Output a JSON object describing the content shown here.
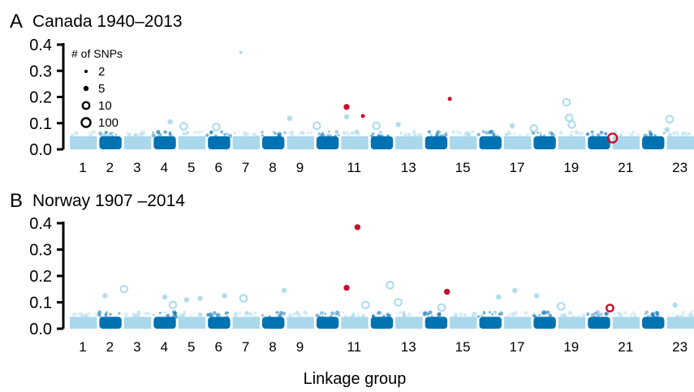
{
  "figure": {
    "xlabel": "Linkage group",
    "palette": {
      "light": "#a9d8ec",
      "dark": "#0072b2",
      "outlier": "#c8102e",
      "axis": "#000000"
    }
  },
  "legend": {
    "title": "# of SNPs",
    "entries": [
      {
        "label": "2",
        "n": 2
      },
      {
        "label": "5",
        "n": 5
      },
      {
        "label": "10",
        "n": 10
      },
      {
        "label": "100",
        "n": 100
      }
    ]
  },
  "chart_data": [
    {
      "type": "scatter",
      "panel_letter": "A",
      "title": "Canada 1940–2013",
      "xlabel": "Linkage group",
      "ylabel": "",
      "ylim": [
        0,
        0.4
      ],
      "yticks": [
        "0.0",
        "0.1",
        "0.2",
        "0.3",
        "0.4"
      ],
      "linkage_groups": 23,
      "xticks": [
        "1",
        "2",
        "3",
        "4",
        "5",
        "6",
        "7",
        "8",
        "9",
        "11",
        "13",
        "15",
        "17",
        "19",
        "21",
        "23"
      ],
      "background_max": 0.05,
      "outliers": [
        {
          "lg": 10.7,
          "y": 0.162,
          "snps": 5
        },
        {
          "lg": 11.3,
          "y": 0.127,
          "snps": 2
        },
        {
          "lg": 14.5,
          "y": 0.193,
          "snps": 2
        },
        {
          "lg": 20.5,
          "y": 0.043,
          "snps": 100
        }
      ],
      "highlights": [
        {
          "lg": 6.8,
          "y": 0.37,
          "snps": 2
        },
        {
          "lg": 4.2,
          "y": 0.105,
          "snps": 5
        },
        {
          "lg": 4.7,
          "y": 0.088,
          "snps": 10
        },
        {
          "lg": 5.9,
          "y": 0.085,
          "snps": 10
        },
        {
          "lg": 8.6,
          "y": 0.118,
          "snps": 5
        },
        {
          "lg": 9.6,
          "y": 0.09,
          "snps": 10
        },
        {
          "lg": 10.7,
          "y": 0.125,
          "snps": 5
        },
        {
          "lg": 11.8,
          "y": 0.09,
          "snps": 10
        },
        {
          "lg": 12.6,
          "y": 0.095,
          "snps": 5
        },
        {
          "lg": 16.8,
          "y": 0.09,
          "snps": 5
        },
        {
          "lg": 17.6,
          "y": 0.08,
          "snps": 10
        },
        {
          "lg": 18.8,
          "y": 0.18,
          "snps": 10
        },
        {
          "lg": 18.9,
          "y": 0.12,
          "snps": 10
        },
        {
          "lg": 19.0,
          "y": 0.095,
          "snps": 10
        },
        {
          "lg": 22.6,
          "y": 0.115,
          "snps": 10
        },
        {
          "lg": 22.5,
          "y": 0.075,
          "snps": 5
        }
      ]
    },
    {
      "type": "scatter",
      "panel_letter": "B",
      "title": "Norway 1907 –2014",
      "xlabel": "Linkage group",
      "ylabel": "",
      "ylim": [
        0,
        0.4
      ],
      "yticks": [
        "0.0",
        "0.1",
        "0.2",
        "0.3",
        "0.4"
      ],
      "linkage_groups": 23,
      "xticks": [
        "1",
        "2",
        "3",
        "4",
        "5",
        "6",
        "7",
        "8",
        "9",
        "11",
        "13",
        "15",
        "17",
        "19",
        "21",
        "23"
      ],
      "background_max": 0.045,
      "outliers": [
        {
          "lg": 11.1,
          "y": 0.385,
          "snps": 5
        },
        {
          "lg": 10.7,
          "y": 0.155,
          "snps": 5
        },
        {
          "lg": 14.4,
          "y": 0.14,
          "snps": 5
        },
        {
          "lg": 20.4,
          "y": 0.078,
          "snps": 10
        }
      ],
      "highlights": [
        {
          "lg": 1.8,
          "y": 0.125,
          "snps": 5
        },
        {
          "lg": 2.5,
          "y": 0.15,
          "snps": 10
        },
        {
          "lg": 4.0,
          "y": 0.12,
          "snps": 5
        },
        {
          "lg": 4.3,
          "y": 0.09,
          "snps": 10
        },
        {
          "lg": 4.8,
          "y": 0.11,
          "snps": 5
        },
        {
          "lg": 5.3,
          "y": 0.115,
          "snps": 5
        },
        {
          "lg": 6.2,
          "y": 0.125,
          "snps": 5
        },
        {
          "lg": 6.9,
          "y": 0.115,
          "snps": 10
        },
        {
          "lg": 8.4,
          "y": 0.145,
          "snps": 5
        },
        {
          "lg": 11.4,
          "y": 0.09,
          "snps": 10
        },
        {
          "lg": 12.3,
          "y": 0.165,
          "snps": 10
        },
        {
          "lg": 12.6,
          "y": 0.1,
          "snps": 10
        },
        {
          "lg": 14.2,
          "y": 0.08,
          "snps": 10
        },
        {
          "lg": 16.3,
          "y": 0.12,
          "snps": 5
        },
        {
          "lg": 16.9,
          "y": 0.145,
          "snps": 5
        },
        {
          "lg": 17.7,
          "y": 0.125,
          "snps": 5
        },
        {
          "lg": 18.6,
          "y": 0.085,
          "snps": 10
        },
        {
          "lg": 22.8,
          "y": 0.09,
          "snps": 5
        }
      ]
    }
  ]
}
